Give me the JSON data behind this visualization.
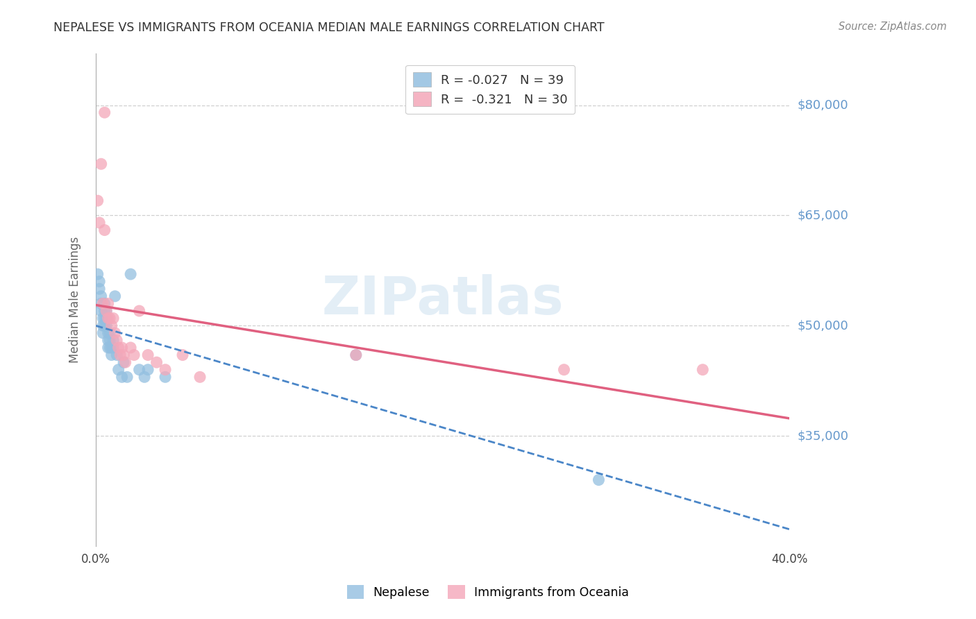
{
  "title": "NEPALESE VS IMMIGRANTS FROM OCEANIA MEDIAN MALE EARNINGS CORRELATION CHART",
  "source": "Source: ZipAtlas.com",
  "ylabel": "Median Male Earnings",
  "watermark": "ZIPatlas",
  "xlim": [
    0.0,
    0.4
  ],
  "ylim": [
    20000,
    87000
  ],
  "yticks": [
    35000,
    50000,
    65000,
    80000
  ],
  "ytick_labels": [
    "$35,000",
    "$50,000",
    "$65,000",
    "$80,000"
  ],
  "xticks": [
    0.0,
    0.08,
    0.16,
    0.24,
    0.32,
    0.4
  ],
  "xtick_labels": [
    "0.0%",
    "",
    "",
    "",
    "",
    "40.0%"
  ],
  "nepalese_x": [
    0.001,
    0.002,
    0.002,
    0.003,
    0.003,
    0.003,
    0.004,
    0.004,
    0.004,
    0.005,
    0.005,
    0.005,
    0.005,
    0.006,
    0.006,
    0.006,
    0.007,
    0.007,
    0.007,
    0.008,
    0.008,
    0.008,
    0.009,
    0.009,
    0.01,
    0.01,
    0.011,
    0.012,
    0.013,
    0.015,
    0.016,
    0.018,
    0.02,
    0.025,
    0.028,
    0.03,
    0.04,
    0.15,
    0.29
  ],
  "nepalese_y": [
    57000,
    56000,
    55000,
    54000,
    53000,
    52000,
    51000,
    50000,
    49000,
    53000,
    52000,
    51000,
    50000,
    52000,
    51000,
    50000,
    49000,
    48000,
    47000,
    49000,
    48000,
    47000,
    47000,
    46000,
    48000,
    47000,
    54000,
    46000,
    44000,
    43000,
    45000,
    43000,
    57000,
    44000,
    43000,
    44000,
    43000,
    46000,
    29000
  ],
  "oceania_x": [
    0.001,
    0.002,
    0.003,
    0.004,
    0.005,
    0.005,
    0.006,
    0.007,
    0.007,
    0.008,
    0.009,
    0.01,
    0.011,
    0.012,
    0.013,
    0.014,
    0.015,
    0.016,
    0.017,
    0.02,
    0.022,
    0.025,
    0.03,
    0.035,
    0.04,
    0.05,
    0.06,
    0.15,
    0.27,
    0.35
  ],
  "oceania_y": [
    67000,
    64000,
    72000,
    53000,
    79000,
    63000,
    52000,
    53000,
    51000,
    51000,
    50000,
    51000,
    49000,
    48000,
    47000,
    46000,
    47000,
    46000,
    45000,
    47000,
    46000,
    52000,
    46000,
    45000,
    44000,
    46000,
    43000,
    46000,
    44000,
    44000
  ],
  "nepalese_color": "#93bfe0",
  "oceania_color": "#f4a7b9",
  "nepalese_line_color": "#4a86c8",
  "oceania_line_color": "#e06080",
  "grid_color": "#d0d0d0",
  "background_color": "#ffffff",
  "title_color": "#333333",
  "axis_label_color": "#666666",
  "right_label_color": "#6699cc",
  "source_color": "#888888",
  "legend_r1": "R = -0.027   N = 39",
  "legend_r2": "R =  -0.321   N = 30"
}
